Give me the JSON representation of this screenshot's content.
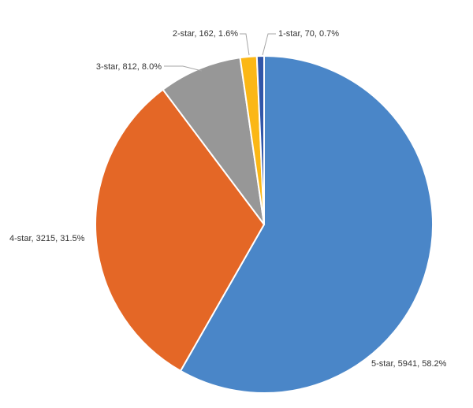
{
  "chart_data": {
    "type": "pie",
    "start_angle_deg": 0,
    "direction": "clockwise",
    "slices": [
      {
        "name": "5-star",
        "value": 5941,
        "percent": "58.2%",
        "color": "#4a86c8",
        "label": "5-star, 5941, 58.2%"
      },
      {
        "name": "4-star",
        "value": 3215,
        "percent": "31.5%",
        "color": "#e46726",
        "label": "4-star, 3215, 31.5%"
      },
      {
        "name": "3-star",
        "value": 812,
        "percent": "8.0%",
        "color": "#979797",
        "label": "3-star, 812, 8.0%"
      },
      {
        "name": "2-star",
        "value": 162,
        "percent": "1.6%",
        "color": "#fbb716",
        "label": "2-star, 162, 1.6%"
      },
      {
        "name": "1-star",
        "value": 70,
        "percent": "0.7%",
        "color": "#3256a8",
        "label": "1-star, 70, 0.7%"
      }
    ],
    "legend": "none"
  }
}
